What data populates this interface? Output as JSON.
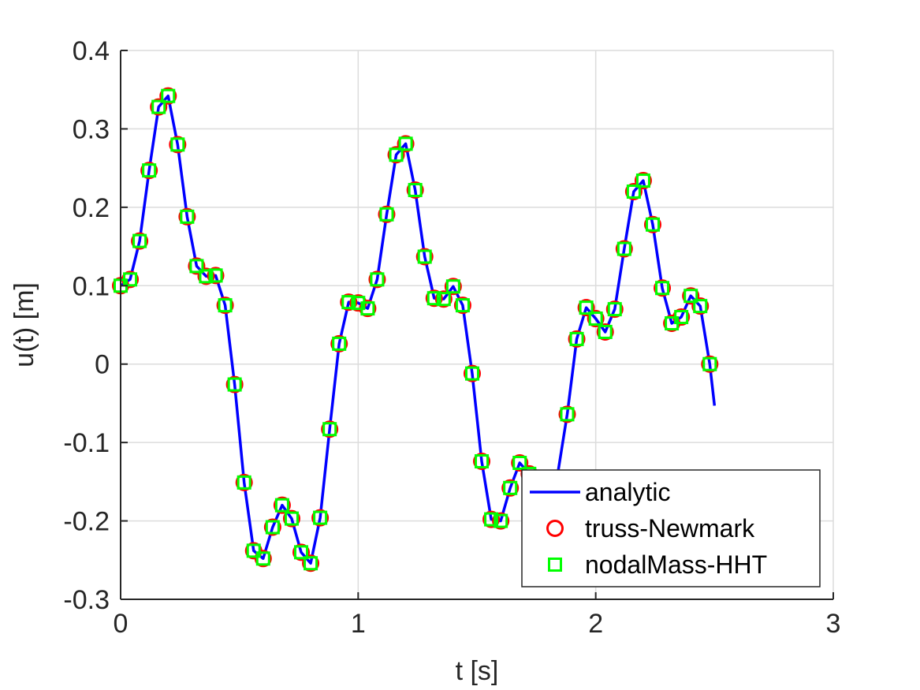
{
  "chart_data": {
    "type": "line",
    "title": "",
    "xlabel": "t [s]",
    "ylabel": "u(t) [m]",
    "xlim": [
      0,
      3
    ],
    "ylim": [
      -0.3,
      0.4
    ],
    "x_ticks": [
      0,
      1,
      2,
      3
    ],
    "y_ticks": [
      -0.3,
      -0.2,
      -0.1,
      0,
      0.1,
      0.2,
      0.3,
      0.4
    ],
    "x_tick_labels": [
      "0",
      "1",
      "2",
      "3"
    ],
    "y_tick_labels": [
      "-0.3",
      "-0.2",
      "-0.1",
      "0",
      "0.1",
      "0.2",
      "0.3",
      "0.4"
    ],
    "grid": true,
    "legend_position": "bottom-right",
    "colors": {
      "analytic": "#0000ff",
      "truss": "#ff0000",
      "nodal": "#00ff00",
      "grid": "#dcdcdc",
      "axis": "#262626"
    },
    "series": [
      {
        "name": "analytic",
        "style": "line",
        "x": [
          0,
          0.04,
          0.08,
          0.12,
          0.16,
          0.2,
          0.24,
          0.28,
          0.32,
          0.36,
          0.4,
          0.44,
          0.48,
          0.52,
          0.56,
          0.6,
          0.64,
          0.68,
          0.72,
          0.76,
          0.8,
          0.84,
          0.88,
          0.92,
          0.96,
          1.0,
          1.04,
          1.08,
          1.12,
          1.16,
          1.2,
          1.24,
          1.28,
          1.32,
          1.36,
          1.4,
          1.44,
          1.48,
          1.52,
          1.56,
          1.6,
          1.64,
          1.68,
          1.72,
          1.76,
          1.8,
          1.84,
          1.88,
          1.92,
          1.96,
          2.0,
          2.04,
          2.08,
          2.12,
          2.16,
          2.2,
          2.24,
          2.28,
          2.32,
          2.36,
          2.4,
          2.44,
          2.48,
          2.5
        ],
        "y": [
          0.1,
          0.108,
          0.157,
          0.247,
          0.328,
          0.342,
          0.28,
          0.188,
          0.125,
          0.112,
          0.113,
          0.075,
          -0.026,
          -0.151,
          -0.238,
          -0.248,
          -0.208,
          -0.18,
          -0.197,
          -0.24,
          -0.254,
          -0.196,
          -0.083,
          0.026,
          0.079,
          0.078,
          0.071,
          0.108,
          0.191,
          0.267,
          0.281,
          0.222,
          0.137,
          0.084,
          0.083,
          0.099,
          0.075,
          -0.012,
          -0.124,
          -0.198,
          -0.2,
          -0.158,
          -0.126,
          -0.14,
          -0.175,
          -0.18,
          -0.14,
          -0.064,
          0.032,
          0.072,
          0.058,
          0.041,
          0.07,
          0.147,
          0.22,
          0.234,
          0.178,
          0.097,
          0.052,
          0.06,
          0.087,
          0.074,
          0.0,
          -0.053
        ]
      },
      {
        "name": "truss-Newmark",
        "style": "circle",
        "x": [
          0,
          0.04,
          0.08,
          0.12,
          0.16,
          0.2,
          0.24,
          0.28,
          0.32,
          0.36,
          0.4,
          0.44,
          0.48,
          0.52,
          0.56,
          0.6,
          0.64,
          0.68,
          0.72,
          0.76,
          0.8,
          0.84,
          0.88,
          0.92,
          0.96,
          1.0,
          1.04,
          1.08,
          1.12,
          1.16,
          1.2,
          1.24,
          1.28,
          1.32,
          1.36,
          1.4,
          1.44,
          1.48,
          1.52,
          1.56,
          1.6,
          1.64,
          1.68,
          1.72,
          1.88,
          1.92,
          1.96,
          2.0,
          2.04,
          2.08,
          2.12,
          2.16,
          2.2,
          2.24,
          2.28,
          2.32,
          2.36,
          2.4,
          2.44,
          2.48
        ],
        "y": [
          0.1,
          0.108,
          0.157,
          0.247,
          0.328,
          0.342,
          0.28,
          0.188,
          0.125,
          0.112,
          0.113,
          0.075,
          -0.026,
          -0.151,
          -0.238,
          -0.248,
          -0.208,
          -0.18,
          -0.197,
          -0.24,
          -0.254,
          -0.196,
          -0.083,
          0.026,
          0.079,
          0.078,
          0.071,
          0.108,
          0.191,
          0.267,
          0.281,
          0.222,
          0.137,
          0.084,
          0.083,
          0.099,
          0.075,
          -0.012,
          -0.124,
          -0.198,
          -0.2,
          -0.158,
          -0.126,
          -0.14,
          -0.064,
          0.032,
          0.072,
          0.058,
          0.041,
          0.07,
          0.147,
          0.22,
          0.234,
          0.178,
          0.097,
          0.052,
          0.06,
          0.087,
          0.074,
          0.0
        ]
      },
      {
        "name": "nodalMass-HHT",
        "style": "square",
        "x": [
          0,
          0.04,
          0.08,
          0.12,
          0.16,
          0.2,
          0.24,
          0.28,
          0.32,
          0.36,
          0.4,
          0.44,
          0.48,
          0.52,
          0.56,
          0.6,
          0.64,
          0.68,
          0.72,
          0.76,
          0.8,
          0.84,
          0.88,
          0.92,
          0.96,
          1.0,
          1.04,
          1.08,
          1.12,
          1.16,
          1.2,
          1.24,
          1.28,
          1.32,
          1.36,
          1.4,
          1.44,
          1.48,
          1.52,
          1.56,
          1.6,
          1.64,
          1.68,
          1.72,
          1.88,
          1.92,
          1.96,
          2.0,
          2.04,
          2.08,
          2.12,
          2.16,
          2.2,
          2.24,
          2.28,
          2.32,
          2.36,
          2.4,
          2.44,
          2.48
        ],
        "y": [
          0.1,
          0.108,
          0.157,
          0.247,
          0.328,
          0.342,
          0.28,
          0.188,
          0.125,
          0.112,
          0.113,
          0.075,
          -0.026,
          -0.151,
          -0.238,
          -0.248,
          -0.208,
          -0.18,
          -0.197,
          -0.24,
          -0.254,
          -0.196,
          -0.083,
          0.026,
          0.079,
          0.078,
          0.071,
          0.108,
          0.191,
          0.267,
          0.281,
          0.222,
          0.137,
          0.084,
          0.083,
          0.099,
          0.075,
          -0.012,
          -0.124,
          -0.198,
          -0.2,
          -0.158,
          -0.126,
          -0.14,
          -0.064,
          0.032,
          0.072,
          0.058,
          0.041,
          0.07,
          0.147,
          0.22,
          0.234,
          0.178,
          0.097,
          0.052,
          0.06,
          0.087,
          0.074,
          0.0
        ]
      }
    ]
  }
}
